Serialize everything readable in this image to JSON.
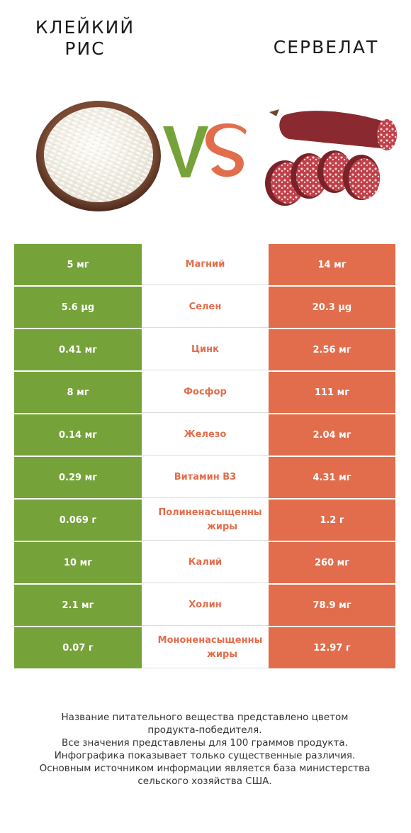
{
  "header": {
    "left_title_line1": "КЛЕЙКИЙ",
    "left_title_line2": "РИС",
    "right_title": "СЕРВЕЛАТ",
    "vs_v": "V",
    "vs_s": "S"
  },
  "colors": {
    "left": "#76a23a",
    "right": "#e26d4c"
  },
  "rows": [
    {
      "left": "5 мг",
      "name": "Магний",
      "right": "14 мг",
      "winner": "right"
    },
    {
      "left": "5.6 µg",
      "name": "Селен",
      "right": "20.3 µg",
      "winner": "right"
    },
    {
      "left": "0.41 мг",
      "name": "Цинк",
      "right": "2.56 мг",
      "winner": "right"
    },
    {
      "left": "8 мг",
      "name": "Фосфор",
      "right": "111 мг",
      "winner": "right"
    },
    {
      "left": "0.14 мг",
      "name": "Железо",
      "right": "2.04 мг",
      "winner": "right"
    },
    {
      "left": "0.29 мг",
      "name": "Витамин B3",
      "right": "4.31 мг",
      "winner": "right"
    },
    {
      "left": "0.069 г",
      "name_line1": "Полиненасыщенны",
      "name_line2": "жиры",
      "right": "1.2 г",
      "winner": "right"
    },
    {
      "left": "10 мг",
      "name": "Калий",
      "right": "260 мг",
      "winner": "right"
    },
    {
      "left": "2.1 мг",
      "name": "Холин",
      "right": "78.9 мг",
      "winner": "right"
    },
    {
      "left": "0.07 г",
      "name_line1": "Мононенасыщенны",
      "name_line2": "жиры",
      "right": "12.97 г",
      "winner": "right"
    }
  ],
  "footnote": {
    "line1": "Название питательного вещества представлено цветом",
    "line2": "продукта-победителя.",
    "line3": "Все значения представлены для 100 граммов продукта.",
    "line4": "Инфографика показывает только существенные различия.",
    "line5": "Основным источником информации является база министерства",
    "line6": "сельского хозяйства США."
  }
}
